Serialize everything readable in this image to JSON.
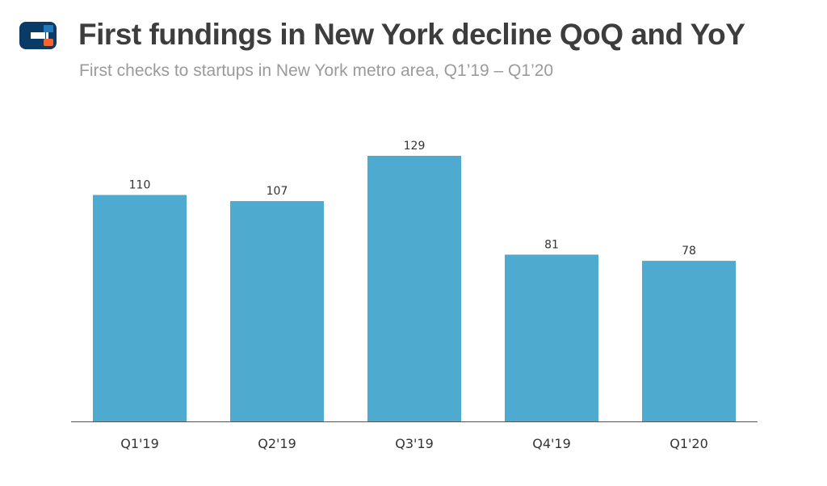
{
  "header": {
    "title": "First fundings in New York decline QoQ and YoY",
    "subtitle": "First checks to startups in New York metro area, Q1’19 – Q1’20"
  },
  "logo": {
    "icon": "crunchbase-logo-icon",
    "colors": {
      "primary": "#0a3b66",
      "accent": "#f56532",
      "light": "#1f7ac0"
    }
  },
  "colors": {
    "bar": "#4eaacf",
    "axis": "#555555",
    "text": "#333333",
    "title": "#3d3d3d",
    "subtitle": "#9a9a9a"
  },
  "chart_data": {
    "type": "bar",
    "title": "First fundings in New York decline QoQ and YoY",
    "subtitle": "First checks to startups in New York metro area, Q1’19 – Q1’20",
    "categories": [
      "Q1'19",
      "Q2'19",
      "Q3'19",
      "Q4'19",
      "Q1'20"
    ],
    "values": [
      110,
      107,
      129,
      81,
      78
    ],
    "data_labels": [
      "110",
      "107",
      "129",
      "81",
      "78"
    ],
    "xlabel": "",
    "ylabel": "",
    "ylim": [
      0,
      129
    ],
    "grid": false,
    "legend": "none"
  }
}
